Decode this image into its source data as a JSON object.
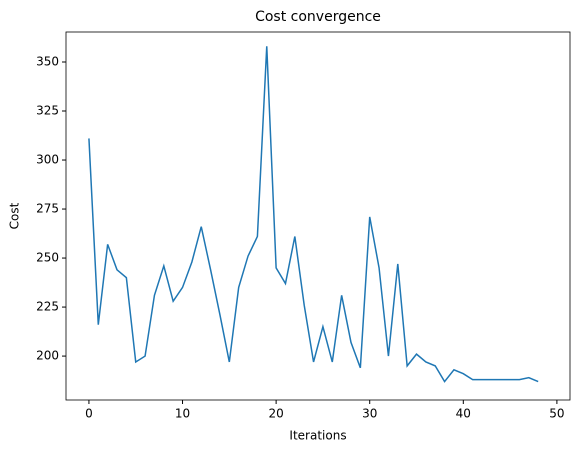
{
  "chart_data": {
    "type": "line",
    "title": "Cost convergence",
    "x_label": "Iterations",
    "y_label": "Cost",
    "x": [
      0,
      1,
      2,
      3,
      4,
      5,
      6,
      7,
      8,
      9,
      10,
      11,
      12,
      13,
      14,
      15,
      16,
      17,
      18,
      19,
      20,
      21,
      22,
      23,
      24,
      25,
      26,
      27,
      28,
      29,
      30,
      31,
      32,
      33,
      34,
      35,
      36,
      37,
      38,
      39,
      40,
      41,
      42,
      43,
      44,
      45,
      46,
      47,
      48
    ],
    "series": [
      {
        "name": "Cost",
        "color": "#1f77b4",
        "values": [
          311,
          216,
          257,
          244,
          240,
          197,
          200,
          231,
          246,
          228,
          235,
          248,
          266,
          244,
          221,
          197,
          235,
          251,
          261,
          358,
          245,
          237,
          261,
          226,
          197,
          215,
          197,
          231,
          207,
          194,
          271,
          245,
          200,
          247,
          195,
          201,
          197,
          195,
          187,
          193,
          191,
          188,
          188,
          188,
          188,
          188,
          188,
          189,
          187
        ]
      }
    ],
    "xlim": [
      -2.45,
      51.4
    ],
    "xticks": [
      0,
      10,
      20,
      30,
      40,
      50
    ],
    "ylim": [
      177.6,
      365.3
    ],
    "yticks": [
      200,
      225,
      250,
      275,
      300,
      325,
      350
    ]
  }
}
